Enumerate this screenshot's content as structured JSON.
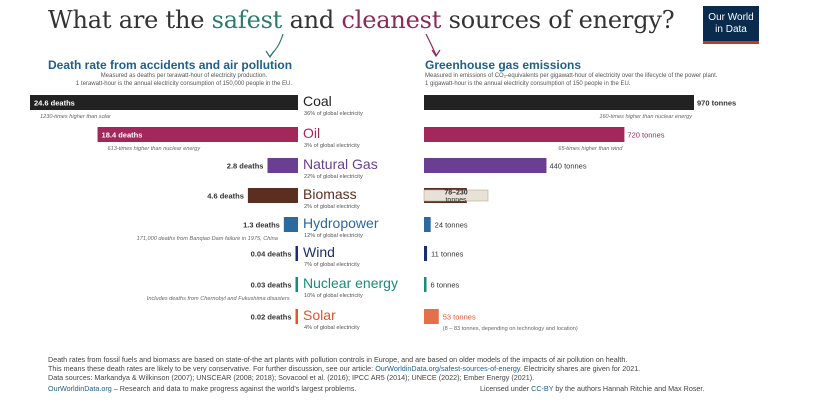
{
  "title": {
    "part1": "What are the ",
    "safest": "safest",
    "and": " and ",
    "cleanest": "cleanest",
    "part2": " sources of energy?"
  },
  "logo": {
    "line1": "Our World",
    "line2": "in Data"
  },
  "left_panel": {
    "heading": "Death rate from accidents and air pollution",
    "sub1": "Measured as deaths per terawatt-hour of electricity production.",
    "sub2": "1 terawatt-hour is the annual electricity consumption of 150,000 people in the EU."
  },
  "right_panel": {
    "heading": "Greenhouse gas emissions",
    "sub1": "Measured in emissions of CO₂-equivalents per gigawatt-hour of electricity over the lifecycle of the power plant.",
    "sub2": "1 gigawatt-hour is the annual electricity consumption of 150 people in the EU."
  },
  "chart_data": {
    "type": "bar",
    "categories": [
      "Coal",
      "Oil",
      "Natural Gas",
      "Biomass",
      "Hydropower",
      "Wind",
      "Nuclear energy",
      "Solar"
    ],
    "shares": [
      "36% of global electricity",
      "3% of global electricity",
      "22% of global electricity",
      "2% of global electricity",
      "12% of global electricity",
      "7% of global electricity",
      "10% of global electricity",
      "4% of global electricity"
    ],
    "category_colors": [
      "#222222",
      "#a2275a",
      "#6a3f92",
      "#5a2f22",
      "#2a6aa0",
      "#1a2f6a",
      "#1a8a7a",
      "#e0562a"
    ],
    "series": [
      {
        "name": "Death rate (deaths per TWh)",
        "values": [
          24.6,
          18.4,
          2.8,
          4.6,
          1.3,
          0.04,
          0.03,
          0.02
        ],
        "labels": [
          "24.6 deaths",
          "18.4 deaths",
          "2.8 deaths",
          "4.6 deaths",
          "1.3 deaths",
          "0.04 deaths",
          "0.03 deaths",
          "0.02 deaths"
        ]
      },
      {
        "name": "Greenhouse gas emissions (tonnes CO2-eq per GWh)",
        "values": [
          970,
          720,
          440,
          154,
          24,
          11,
          6,
          53
        ],
        "labels": [
          "970 tonnes",
          "720 tonnes",
          "440 tonnes",
          "78–230 tonnes",
          "24 tonnes",
          "11 tonnes",
          "6 tonnes",
          "53 tonnes"
        ]
      }
    ],
    "death_notes": [
      "1230-times higher than solar",
      "613-times higher than nuclear energy",
      "",
      "",
      "171,000 deaths from Banqiao Dam failure in 1975, China",
      "",
      "Includes deaths from Chernobyl and Fukushima disasters",
      ""
    ],
    "emission_notes": [
      "160-times higher than nuclear energy",
      "65-times higher than wind",
      "",
      "",
      "",
      "",
      "",
      "(8 – 83 tonnes, depending on technology and location)"
    ],
    "biomass_range": [
      78,
      230
    ],
    "solar_range": [
      8,
      83
    ]
  },
  "footer": {
    "line1": "Death rates from fossil fuels and biomass are based on state-of-the art plants with pollution controls in Europe, and are based on older models of the impacts of air pollution on health.",
    "line2a": "This means these death rates are likely to be very conservative. For further discussion, see our article: ",
    "line2_link": "OurWorldinData.org/safest-sources-of-energy",
    "line2b": ". Electricity shares are given for 2021.",
    "line3": "Data sources: Markandya & Wilkinson (2007); UNSCEAR (2008; 2018); Sovacool et al. (2016); IPCC AR5 (2014); UNECE (2022); Ember Energy (2021).",
    "site": "OurWorldinData.org",
    "mission": " – Research and data to make progress against the world's largest problems.",
    "license_a": "Licensed under ",
    "license_link": "CC-BY",
    "license_b": " by the authors Hannah Ritchie and Max Roser."
  }
}
